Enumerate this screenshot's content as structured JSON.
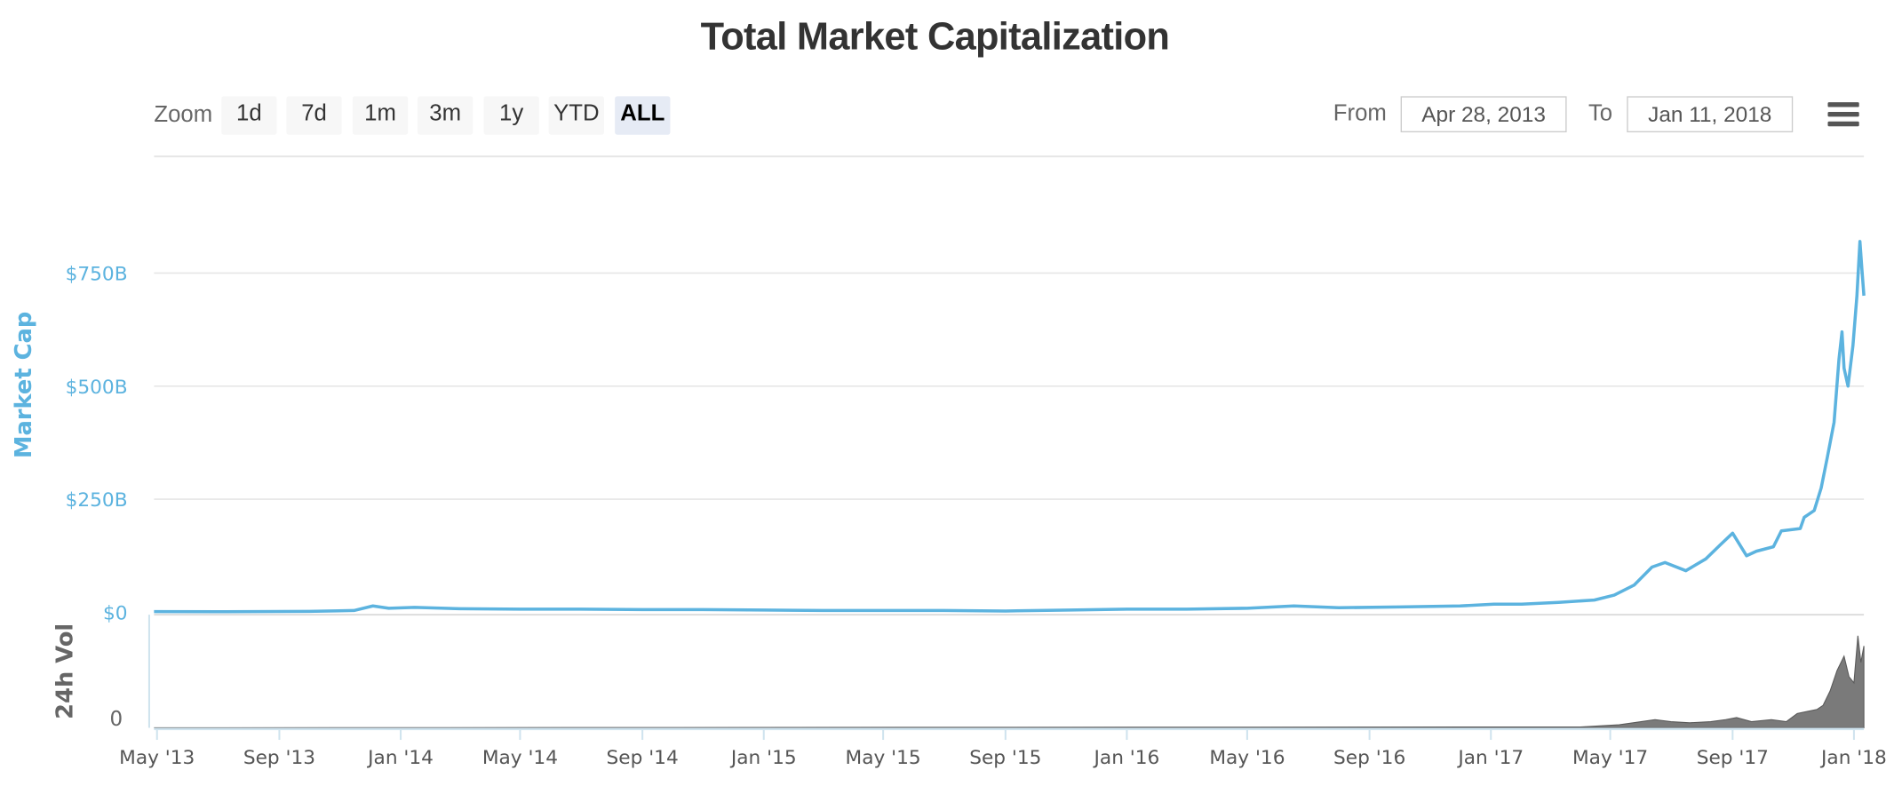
{
  "title": "Total Market Capitalization",
  "toolbar": {
    "zoom_label": "Zoom",
    "buttons": [
      "1d",
      "7d",
      "1m",
      "3m",
      "1y",
      "YTD",
      "ALL"
    ],
    "active": "ALL",
    "from_label": "From",
    "from_value": "Apr 28, 2013",
    "to_label": "To",
    "to_value": "Jan 11, 2018",
    "menu_icon": "hamburger-menu-icon"
  },
  "colors": {
    "market_cap": "#5cb3df",
    "volume": "#7a7a7a",
    "grid": "#e6e6e6"
  },
  "chart_data": {
    "type": "line",
    "title": "Total Market Capitalization",
    "x_axis": {
      "type": "datetime",
      "range": [
        "2013-04-28",
        "2018-01-11"
      ],
      "tick_labels": [
        "May '13",
        "Sep '13",
        "Jan '14",
        "May '14",
        "Sep '14",
        "Jan '15",
        "May '15",
        "Sep '15",
        "Jan '16",
        "May '16",
        "Sep '16",
        "Jan '17",
        "May '17",
        "Sep '17",
        "Jan '18"
      ]
    },
    "y_axis": {
      "label": "Market Cap",
      "ylim": [
        0,
        900
      ],
      "unit": "billion USD",
      "tick_labels": [
        "$0",
        "$250B",
        "$500B",
        "$750B"
      ],
      "tick_values": [
        0,
        250,
        500,
        750
      ]
    },
    "series": [
      {
        "name": "Market Cap",
        "x": [
          "2013-04-28",
          "2013-07-01",
          "2013-10-01",
          "2013-11-15",
          "2013-12-04",
          "2013-12-20",
          "2014-01-15",
          "2014-03-01",
          "2014-05-01",
          "2014-07-01",
          "2014-09-01",
          "2014-11-01",
          "2015-01-01",
          "2015-03-01",
          "2015-05-01",
          "2015-07-01",
          "2015-09-01",
          "2015-11-05",
          "2016-01-01",
          "2016-03-01",
          "2016-05-01",
          "2016-06-17",
          "2016-08-01",
          "2016-10-01",
          "2016-12-01",
          "2017-01-04",
          "2017-02-01",
          "2017-03-10",
          "2017-04-15",
          "2017-05-05",
          "2017-05-25",
          "2017-06-12",
          "2017-06-25",
          "2017-07-16",
          "2017-08-05",
          "2017-08-20",
          "2017-09-01",
          "2017-09-15",
          "2017-09-25",
          "2017-10-12",
          "2017-10-20",
          "2017-11-08",
          "2017-11-12",
          "2017-11-22",
          "2017-11-29",
          "2017-12-05",
          "2017-12-12",
          "2017-12-17",
          "2017-12-20",
          "2017-12-22",
          "2017-12-26",
          "2017-12-31",
          "2018-01-04",
          "2018-01-07",
          "2018-01-09",
          "2018-01-11"
        ],
        "y": [
          1.5,
          1.2,
          2,
          4,
          14,
          9,
          11,
          8,
          7,
          7,
          6,
          6,
          5,
          4,
          4,
          4,
          3,
          5,
          7,
          7,
          9,
          14,
          10,
          12,
          14,
          18,
          18,
          22,
          27,
          38,
          60,
          100,
          110,
          92,
          118,
          150,
          175,
          125,
          135,
          145,
          180,
          185,
          210,
          225,
          275,
          340,
          420,
          560,
          620,
          540,
          500,
          590,
          700,
          820,
          760,
          700
        ]
      },
      {
        "name": "24h Vol",
        "x": [
          "2013-04-28",
          "2017-04-01",
          "2017-05-10",
          "2017-06-01",
          "2017-06-15",
          "2017-07-01",
          "2017-07-20",
          "2017-08-10",
          "2017-08-25",
          "2017-09-05",
          "2017-09-20",
          "2017-10-10",
          "2017-10-25",
          "2017-11-05",
          "2017-11-15",
          "2017-11-25",
          "2017-12-01",
          "2017-12-08",
          "2017-12-15",
          "2017-12-22",
          "2017-12-27",
          "2018-01-01",
          "2018-01-05",
          "2018-01-08",
          "2018-01-11"
        ],
        "y": [
          0,
          0.4,
          1.5,
          3,
          4,
          3,
          2.5,
          3,
          4,
          5,
          3,
          4,
          3,
          7,
          8,
          9,
          11,
          18,
          28,
          35,
          25,
          22,
          45,
          32,
          40
        ]
      }
    ],
    "sub_chart": {
      "label": "24h Vol",
      "tick_labels": [
        "0"
      ],
      "ylim": [
        0,
        50
      ],
      "unit": "billion USD"
    }
  }
}
